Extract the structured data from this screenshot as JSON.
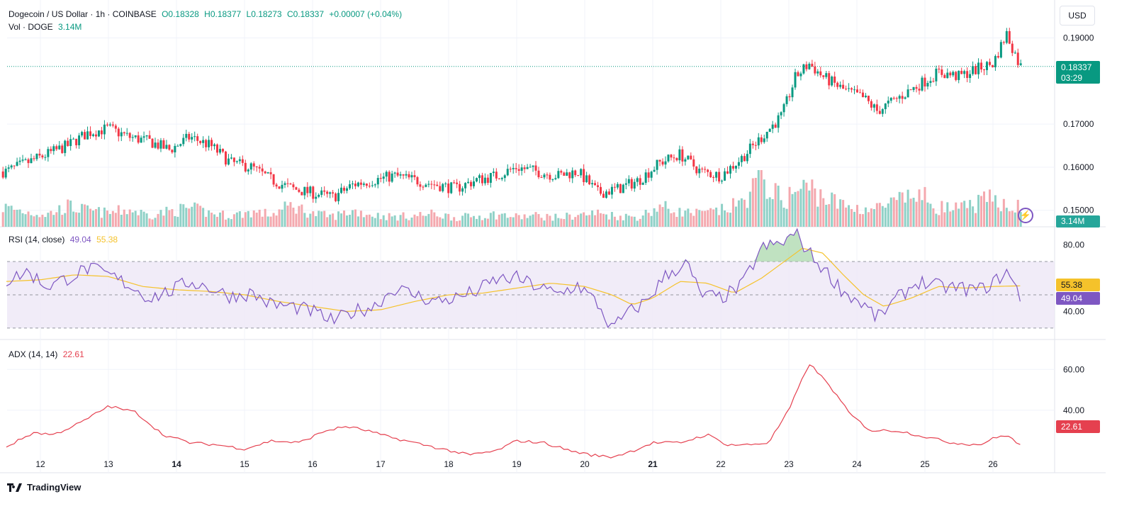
{
  "header": {
    "symbol": "Dogecoin / US Dollar · 1h · COINBASE",
    "open": "O0.18328",
    "high": "H0.18377",
    "low": "L0.18273",
    "close": "C0.18337",
    "change": "+0.00007 (+0.04%)",
    "vol_label": "Vol · DOGE",
    "vol_value": "3.14M"
  },
  "currency_button": "USD",
  "rsi_legend": {
    "label": "RSI (14, close)",
    "rsi_value": "49.04",
    "ma_value": "55.38"
  },
  "adx_legend": {
    "label": "ADX (14, 14)",
    "value": "22.61"
  },
  "price_tags": {
    "last_price": "0.18337",
    "countdown": "03:29",
    "volume": "3.14M",
    "rsi": "49.04",
    "rsi_ma": "55.38",
    "adx": "22.61"
  },
  "brand": "TradingView",
  "colors": {
    "up": "#089981",
    "down": "#f23645",
    "rsi": "#7e57c2",
    "rsi_ma": "#f5c22b",
    "adx": "#e5404f",
    "band": "#ede7f6"
  },
  "chart_data": [
    {
      "type": "candlestick",
      "title": "Dogecoin / US Dollar · 1h · COINBASE",
      "x_ticks": [
        "12",
        "13",
        "14",
        "15",
        "16",
        "17",
        "18",
        "19",
        "20",
        "21",
        "22",
        "23",
        "24",
        "25",
        "26"
      ],
      "y_ticks": [
        "0.19000",
        "0.17000",
        "0.16000",
        "0.15000"
      ],
      "ylim": [
        0.1465,
        0.1955
      ],
      "last_price": 0.18337,
      "series": [
        {
          "name": "price",
          "x": [
            11.5,
            11.8,
            12.1,
            12.4,
            12.7,
            13.0,
            13.3,
            13.6,
            13.9,
            14.2,
            14.5,
            14.8,
            15.1,
            15.4,
            15.7,
            16.0,
            16.3,
            16.6,
            16.9,
            17.2,
            17.5,
            17.8,
            18.1,
            18.4,
            18.7,
            19.0,
            19.3,
            19.6,
            19.9,
            20.2,
            20.5,
            20.8,
            21.1,
            21.4,
            21.7,
            22.0,
            22.3,
            22.6,
            22.9,
            23.1,
            23.3,
            23.5,
            23.8,
            24.1,
            24.3,
            24.6,
            24.9,
            25.2,
            25.5,
            25.8,
            26.0,
            26.2,
            26.4
          ],
          "values": [
            0.159,
            0.161,
            0.163,
            0.165,
            0.168,
            0.169,
            0.167,
            0.166,
            0.164,
            0.167,
            0.165,
            0.161,
            0.16,
            0.157,
            0.155,
            0.154,
            0.153,
            0.156,
            0.157,
            0.158,
            0.157,
            0.156,
            0.155,
            0.157,
            0.158,
            0.16,
            0.159,
            0.158,
            0.159,
            0.154,
            0.155,
            0.157,
            0.161,
            0.163,
            0.159,
            0.158,
            0.162,
            0.167,
            0.172,
            0.181,
            0.184,
            0.181,
            0.178,
            0.176,
            0.173,
            0.176,
            0.179,
            0.182,
            0.181,
            0.183,
            0.184,
            0.191,
            0.1834
          ]
        }
      ]
    },
    {
      "type": "bar",
      "title": "Vol · DOGE",
      "series": [
        {
          "name": "volume",
          "values_million": [
            3.1,
            2.4,
            2.0,
            3.3,
            2.6,
            2.2,
            2.8,
            1.9,
            2.5,
            3.0,
            2.2,
            1.8,
            2.4,
            2.0,
            3.5,
            2.1,
            1.7,
            2.6,
            1.9,
            1.6,
            1.8,
            2.1,
            1.5,
            1.7,
            2.0,
            1.6,
            1.8,
            1.5,
            1.9,
            2.2,
            1.7,
            1.6,
            3.3,
            2.4,
            2.1,
            2.6,
            3.8,
            8.0,
            4.1,
            5.7,
            6.4,
            4.9,
            3.4,
            2.9,
            3.0,
            4.0,
            5.3,
            3.2,
            2.8,
            3.9,
            4.5,
            3.8,
            3.14
          ]
        }
      ]
    },
    {
      "type": "line",
      "title": "RSI (14, close)",
      "y_ticks": [
        "80.00",
        "40.00"
      ],
      "band": [
        30,
        70
      ],
      "ylim": [
        24,
        90
      ],
      "series": [
        {
          "name": "RSI",
          "x": [
            11.5,
            11.8,
            12.1,
            12.4,
            12.7,
            13.0,
            13.3,
            13.6,
            13.9,
            14.2,
            14.5,
            14.8,
            15.1,
            15.4,
            15.7,
            16.0,
            16.3,
            16.6,
            16.9,
            17.2,
            17.5,
            17.8,
            18.1,
            18.4,
            18.7,
            19.0,
            19.3,
            19.6,
            19.9,
            20.2,
            20.4,
            20.6,
            20.9,
            21.2,
            21.5,
            21.7,
            22.0,
            22.3,
            22.6,
            22.9,
            23.1,
            23.3,
            23.5,
            23.8,
            24.1,
            24.3,
            24.6,
            24.9,
            25.2,
            25.5,
            25.8,
            26.0,
            26.2,
            26.4
          ],
          "values": [
            58,
            64,
            55,
            60,
            66,
            62,
            56,
            48,
            52,
            58,
            54,
            49,
            51,
            44,
            43,
            40,
            34,
            40,
            43,
            54,
            50,
            46,
            48,
            52,
            59,
            60,
            55,
            50,
            56,
            44,
            29,
            38,
            46,
            62,
            69,
            50,
            48,
            55,
            78,
            81,
            87,
            75,
            66,
            52,
            44,
            36,
            48,
            58,
            55,
            54,
            53,
            57,
            64,
            49.04
          ]
        },
        {
          "name": "RSI-based MA",
          "x": [
            11.5,
            12.0,
            12.5,
            13.0,
            13.5,
            14.0,
            14.5,
            15.0,
            15.5,
            16.0,
            16.5,
            17.0,
            17.5,
            18.0,
            18.5,
            19.0,
            19.5,
            20.0,
            20.4,
            20.7,
            21.0,
            21.4,
            21.8,
            22.2,
            22.6,
            23.0,
            23.2,
            23.5,
            23.8,
            24.1,
            24.4,
            24.8,
            25.2,
            25.6,
            26.0,
            26.4
          ],
          "values": [
            58,
            59,
            62,
            61,
            55,
            53,
            52,
            50,
            46,
            43,
            40,
            41,
            46,
            50,
            51,
            54,
            57,
            55,
            50,
            44,
            48,
            58,
            57,
            51,
            60,
            72,
            78,
            75,
            62,
            50,
            43,
            48,
            55,
            54,
            55,
            55.38
          ]
        }
      ]
    },
    {
      "type": "line",
      "title": "ADX (14, 14)",
      "y_ticks": [
        "60.00",
        "40.00"
      ],
      "ylim": [
        10,
        74
      ],
      "series": [
        {
          "name": "ADX",
          "x": [
            11.5,
            11.9,
            12.2,
            12.6,
            13.0,
            13.4,
            13.8,
            14.2,
            14.6,
            15.0,
            15.4,
            15.8,
            16.2,
            16.5,
            16.8,
            17.1,
            17.5,
            17.9,
            18.3,
            18.7,
            19.0,
            19.4,
            19.8,
            20.1,
            20.4,
            20.7,
            21.0,
            21.4,
            21.8,
            22.1,
            22.4,
            22.7,
            23.0,
            23.3,
            23.6,
            23.9,
            24.2,
            24.6,
            25.0,
            25.4,
            25.8,
            26.0,
            26.2,
            26.4
          ],
          "values": [
            22,
            29,
            28,
            34,
            42,
            39,
            28,
            24,
            23,
            21,
            25,
            24,
            30,
            32,
            30,
            27,
            24,
            21,
            18,
            20,
            25,
            24,
            20,
            18,
            17,
            20,
            24,
            24,
            28,
            23,
            23,
            24,
            40,
            63,
            52,
            38,
            30,
            30,
            27,
            24,
            23,
            26,
            28,
            22.61
          ]
        }
      ]
    }
  ]
}
